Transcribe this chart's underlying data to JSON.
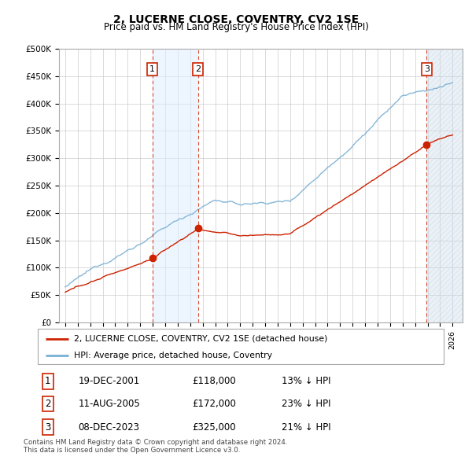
{
  "title": "2, LUCERNE CLOSE, COVENTRY, CV2 1SE",
  "subtitle": "Price paid vs. HM Land Registry's House Price Index (HPI)",
  "ylim": [
    0,
    500000
  ],
  "yticks": [
    0,
    50000,
    100000,
    150000,
    200000,
    250000,
    300000,
    350000,
    400000,
    450000,
    500000
  ],
  "ytick_labels": [
    "£0",
    "£50K",
    "£100K",
    "£150K",
    "£200K",
    "£250K",
    "£300K",
    "£350K",
    "£400K",
    "£450K",
    "£500K"
  ],
  "hpi_color": "#7ab0d4",
  "price_color": "#cc2200",
  "purchases": [
    {
      "date_num": 2001.97,
      "price": 118000,
      "label": "1"
    },
    {
      "date_num": 2005.62,
      "price": 172000,
      "label": "2"
    },
    {
      "date_num": 2023.93,
      "price": 325000,
      "label": "3"
    }
  ],
  "vline_color": "#cc2200",
  "shade_color": "#ddeeff",
  "legend_line1": "2, LUCERNE CLOSE, COVENTRY, CV2 1SE (detached house)",
  "legend_line2": "HPI: Average price, detached house, Coventry",
  "table_entries": [
    {
      "num": "1",
      "date": "19-DEC-2001",
      "price": "£118,000",
      "hpi": "13% ↓ HPI"
    },
    {
      "num": "2",
      "date": "11-AUG-2005",
      "price": "£172,000",
      "hpi": "23% ↓ HPI"
    },
    {
      "num": "3",
      "date": "08-DEC-2023",
      "price": "£325,000",
      "hpi": "21% ↓ HPI"
    }
  ],
  "footnote": "Contains HM Land Registry data © Crown copyright and database right 2024.\nThis data is licensed under the Open Government Licence v3.0.",
  "grid_color": "#cccccc",
  "box_color": "#cc2200",
  "xlim_left": 1994.5,
  "xlim_right": 2026.8
}
